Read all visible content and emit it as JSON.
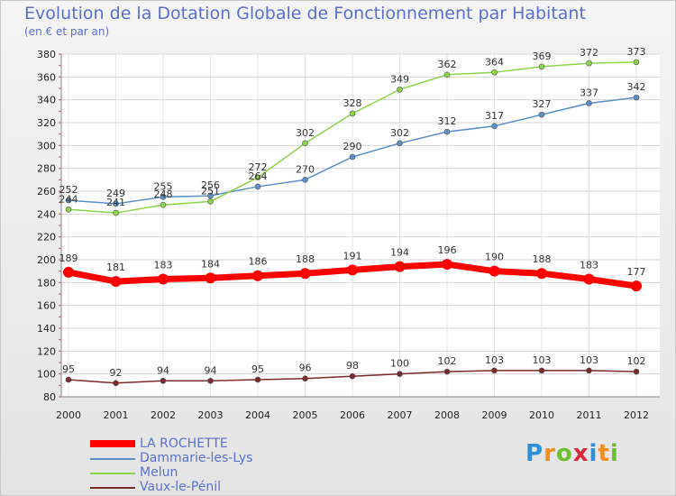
{
  "chart_data": {
    "type": "line",
    "title": "Evolution de la Dotation Globale de Fonctionnement par Habitant",
    "subtitle": "(en € et par an)",
    "xlabel": "",
    "ylabel": "",
    "ylim": [
      80,
      380
    ],
    "yticks": [
      80,
      100,
      120,
      140,
      160,
      180,
      200,
      220,
      240,
      260,
      280,
      300,
      320,
      340,
      360,
      380
    ],
    "grid": true,
    "legend_position": "bottom-left",
    "x": [
      "2000",
      "2001",
      "2002",
      "2003",
      "2004",
      "2005",
      "2006",
      "2007",
      "2008",
      "2009",
      "2010",
      "2011",
      "2012"
    ],
    "series": [
      {
        "name": "LA ROCHETTE",
        "color": "#ff0000",
        "values": [
          189,
          181,
          183,
          184,
          186,
          188,
          191,
          194,
          196,
          190,
          188,
          183,
          177
        ]
      },
      {
        "name": "Dammarie-les-Lys",
        "color": "#5b8fc7",
        "values": [
          252,
          249,
          255,
          256,
          264,
          270,
          290,
          302,
          312,
          317,
          327,
          337,
          342
        ]
      },
      {
        "name": "Melun",
        "color": "#8cd44a",
        "values": [
          244,
          241,
          248,
          251,
          272,
          302,
          328,
          349,
          362,
          364,
          369,
          372,
          373
        ]
      },
      {
        "name": "Vaux-le-Pénil",
        "color": "#7a2a2a",
        "values": [
          95,
          92,
          94,
          94,
          95,
          96,
          98,
          100,
          102,
          103,
          103,
          103,
          102
        ]
      }
    ]
  },
  "brand": {
    "letters": [
      "P",
      "r",
      "o",
      "x",
      "i",
      "t",
      "i"
    ],
    "colors": [
      "#2e8fd6",
      "#f28c1c",
      "#6cbf2e",
      "#e0263c",
      "#2e8fd6",
      "#f28c1c",
      "#6cbf2e"
    ]
  }
}
